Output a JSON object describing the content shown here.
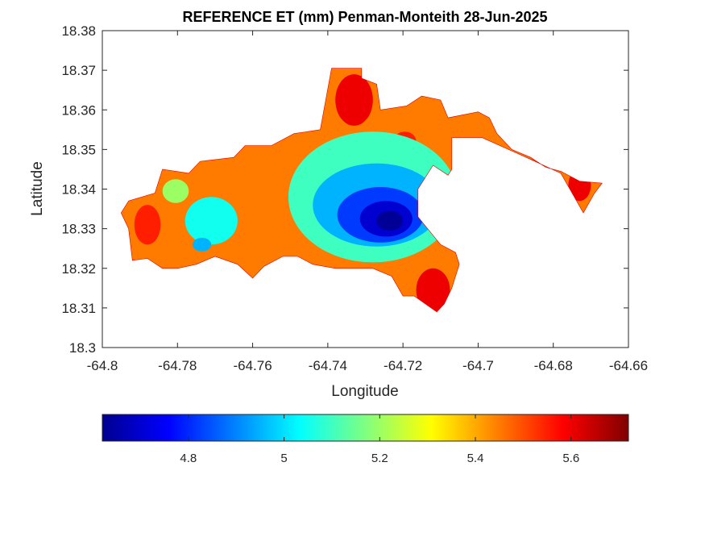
{
  "chart_data": {
    "type": "heatmap",
    "title": "REFERENCE ET (mm) Penman-Monteith 28-Jun-2025",
    "xlabel": "Longitude",
    "ylabel": "Latitude",
    "xlim": [
      -64.8,
      -64.66
    ],
    "ylim": [
      18.3,
      18.38
    ],
    "x_ticks": [
      -64.8,
      -64.78,
      -64.76,
      -64.74,
      -64.72,
      -64.7,
      -64.68,
      -64.66
    ],
    "x_tick_labels": [
      "-64.8",
      "-64.78",
      "-64.76",
      "-64.74",
      "-64.72",
      "-64.7",
      "-64.68",
      "-64.66"
    ],
    "y_ticks": [
      18.3,
      18.31,
      18.32,
      18.33,
      18.34,
      18.35,
      18.36,
      18.37,
      18.38
    ],
    "y_tick_labels": [
      "18.3",
      "18.31",
      "18.32",
      "18.33",
      "18.34",
      "18.35",
      "18.36",
      "18.37",
      "18.38"
    ],
    "grid": false,
    "colormap": "jet",
    "colorbar": {
      "placement": "bottom",
      "range": [
        4.62,
        5.72
      ],
      "ticks": [
        4.8,
        5.0,
        5.2,
        5.4,
        5.6
      ],
      "tick_labels": [
        "4.8",
        "5",
        "5.2",
        "5.4",
        "5.6"
      ]
    },
    "boundary": [
      [
        -64.793,
        18.337
      ],
      [
        -64.786,
        18.339
      ],
      [
        -64.784,
        18.345
      ],
      [
        -64.777,
        18.344
      ],
      [
        -64.774,
        18.347
      ],
      [
        -64.765,
        18.348
      ],
      [
        -64.762,
        18.351
      ],
      [
        -64.755,
        18.351
      ],
      [
        -64.749,
        18.354
      ],
      [
        -64.742,
        18.355
      ],
      [
        -64.739,
        18.3705
      ],
      [
        -64.731,
        18.3705
      ],
      [
        -64.731,
        18.368
      ],
      [
        -64.727,
        18.3665
      ],
      [
        -64.726,
        18.36
      ],
      [
        -64.719,
        18.361
      ],
      [
        -64.715,
        18.3635
      ],
      [
        -64.71,
        18.3625
      ],
      [
        -64.708,
        18.358
      ],
      [
        -64.7,
        18.3595
      ],
      [
        -64.697,
        18.358
      ],
      [
        -64.695,
        18.354
      ],
      [
        -64.691,
        18.35
      ],
      [
        -64.686,
        18.348
      ],
      [
        -64.682,
        18.3455
      ],
      [
        -64.678,
        18.3445
      ],
      [
        -64.673,
        18.342
      ],
      [
        -64.667,
        18.3415
      ],
      [
        -64.669,
        18.339
      ],
      [
        -64.672,
        18.334
      ],
      [
        -64.675,
        18.339
      ],
      [
        -64.678,
        18.344
      ],
      [
        -64.686,
        18.3475
      ],
      [
        -64.699,
        18.353
      ],
      [
        -64.707,
        18.353
      ],
      [
        -64.707,
        18.345
      ],
      [
        -64.708,
        18.3435
      ],
      [
        -64.712,
        18.346
      ],
      [
        -64.716,
        18.34
      ],
      [
        -64.716,
        18.333
      ],
      [
        -64.71,
        18.326
      ],
      [
        -64.706,
        18.324
      ],
      [
        -64.705,
        18.321
      ],
      [
        -64.707,
        18.315
      ],
      [
        -64.709,
        18.311
      ],
      [
        -64.711,
        18.309
      ],
      [
        -64.714,
        18.311
      ],
      [
        -64.717,
        18.313
      ],
      [
        -64.72,
        18.313
      ],
      [
        -64.723,
        18.318
      ],
      [
        -64.728,
        18.32
      ],
      [
        -64.732,
        18.32
      ],
      [
        -64.738,
        18.32
      ],
      [
        -64.744,
        18.321
      ],
      [
        -64.748,
        18.323
      ],
      [
        -64.752,
        18.323
      ],
      [
        -64.757,
        18.3205
      ],
      [
        -64.76,
        18.3175
      ],
      [
        -64.764,
        18.321
      ],
      [
        -64.77,
        18.323
      ],
      [
        -64.775,
        18.321
      ],
      [
        -64.78,
        18.32
      ],
      [
        -64.784,
        18.32
      ],
      [
        -64.788,
        18.3225
      ],
      [
        -64.792,
        18.322
      ],
      [
        -64.793,
        18.33
      ],
      [
        -64.795,
        18.334
      ]
    ],
    "contour_levels": [
      {
        "center": [
          -64.728,
          18.338
        ],
        "radii": [
          0.0225,
          0.0165
        ],
        "value": 5.1
      },
      {
        "center": [
          -64.727,
          18.336
        ],
        "radii": [
          0.017,
          0.0105
        ],
        "value": 4.95
      },
      {
        "center": [
          -64.726,
          18.3335
        ],
        "radii": [
          0.0115,
          0.007
        ],
        "value": 4.82
      },
      {
        "center": [
          -64.7245,
          18.3325
        ],
        "radii": [
          0.007,
          0.0045
        ],
        "value": 4.7
      },
      {
        "center": [
          -64.7235,
          18.332
        ],
        "radii": [
          0.0035,
          0.0025
        ],
        "value": 4.63
      },
      {
        "center": [
          -64.771,
          18.332
        ],
        "radii": [
          0.007,
          0.006
        ],
        "value": 5.05
      },
      {
        "center": [
          -64.7735,
          18.326
        ],
        "radii": [
          0.0025,
          0.0017
        ],
        "value": 4.95
      },
      {
        "center": [
          -64.7805,
          18.3395
        ],
        "radii": [
          0.0035,
          0.003
        ],
        "value": 5.2
      }
    ],
    "hot_spots": [
      {
        "center": [
          -64.733,
          18.3625
        ],
        "radii": [
          0.005,
          0.0065
        ],
        "value": 5.6
      },
      {
        "center": [
          -64.712,
          18.3145
        ],
        "radii": [
          0.0045,
          0.0055
        ],
        "value": 5.6
      },
      {
        "center": [
          -64.688,
          18.346
        ],
        "radii": [
          0.004,
          0.0018
        ],
        "value": 5.6
      },
      {
        "center": [
          -64.673,
          18.341
        ],
        "radii": [
          0.003,
          0.004
        ],
        "value": 5.6
      },
      {
        "center": [
          -64.788,
          18.331
        ],
        "radii": [
          0.0035,
          0.005
        ],
        "value": 5.55
      },
      {
        "center": [
          -64.7195,
          18.352
        ],
        "radii": [
          0.003,
          0.0025
        ],
        "value": 5.55
      }
    ]
  }
}
